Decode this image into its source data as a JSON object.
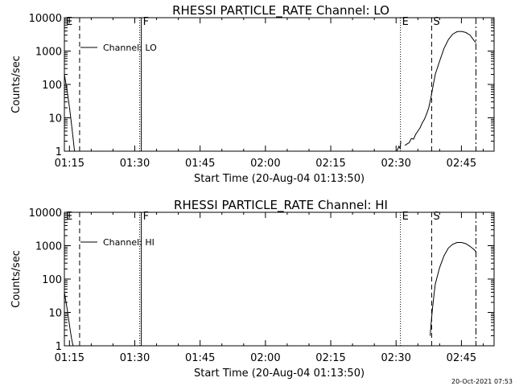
{
  "footer": {
    "timestamp": "20-Oct-2021 07:53"
  },
  "chart_data": [
    {
      "type": "line",
      "title": "RHESSI PARTICLE_RATE Channel: LO",
      "xlabel": "Start Time (20-Aug-04 01:13:50)",
      "ylabel": "Counts/sec",
      "yscale": "log",
      "ylim": [
        1,
        10000
      ],
      "xlim": [
        "01:13:50",
        "02:52:30"
      ],
      "xticks": [
        "01:15",
        "01:30",
        "01:45",
        "02:00",
        "02:15",
        "02:30",
        "02:45"
      ],
      "yticks": [
        "1",
        "10",
        "100",
        "1000",
        "10000"
      ],
      "legend": {
        "placement": "top-left",
        "entries": [
          "Channel: LO"
        ]
      },
      "grid": false,
      "markers": [
        {
          "label": "E",
          "time": "01:13:50",
          "style": "dotted"
        },
        {
          "label": "",
          "time": "01:17:20",
          "style": "dashed"
        },
        {
          "label": "F",
          "time": "01:31:30",
          "style": "solid"
        },
        {
          "label": "E",
          "time": "02:31:00",
          "style": "dotted"
        },
        {
          "label": "S",
          "time": "02:38:10",
          "style": "dashed"
        },
        {
          "label": "",
          "time": "02:48:20",
          "style": "dashdot"
        }
      ],
      "series": [
        {
          "name": "Channel: LO",
          "segments": [
            [
              [
                "01:13:50",
                200
              ],
              [
                "01:14:10",
                110
              ],
              [
                "01:14:30",
                60
              ],
              [
                "01:14:50",
                30
              ],
              [
                "01:15:10",
                14
              ],
              [
                "01:15:30",
                6
              ],
              [
                "01:15:50",
                2.5
              ],
              [
                "01:16:10",
                1
              ]
            ],
            [
              [
                "02:30:10",
                1
              ],
              [
                "02:30:40",
                1.4
              ],
              [
                "02:30:55",
                1.2
              ],
              [
                "02:31:05",
                2
              ]
            ],
            [
              [
                "02:32:00",
                1.5
              ],
              [
                "02:33:00",
                1.8
              ],
              [
                "02:33:30",
                2.4
              ],
              [
                "02:34:00",
                2.3
              ],
              [
                "02:34:30",
                3.2
              ],
              [
                "02:35:00",
                4
              ],
              [
                "02:35:30",
                5
              ],
              [
                "02:36:00",
                7
              ],
              [
                "02:36:30",
                9
              ],
              [
                "02:37:00",
                13
              ],
              [
                "02:37:30",
                20
              ],
              [
                "02:38:00",
                40
              ],
              [
                "02:38:30",
                90
              ],
              [
                "02:39:00",
                200
              ],
              [
                "02:40:00",
                500
              ],
              [
                "02:41:00",
                1200
              ],
              [
                "02:42:00",
                2200
              ],
              [
                "02:43:00",
                3200
              ],
              [
                "02:44:00",
                3800
              ],
              [
                "02:45:00",
                3900
              ],
              [
                "02:46:00",
                3600
              ],
              [
                "02:47:00",
                3000
              ],
              [
                "02:48:00",
                2000
              ],
              [
                "02:48:20",
                1800
              ]
            ]
          ]
        }
      ]
    },
    {
      "type": "line",
      "title": "RHESSI PARTICLE_RATE Channel: HI",
      "xlabel": "Start Time (20-Aug-04 01:13:50)",
      "ylabel": "Counts/sec",
      "yscale": "log",
      "ylim": [
        1,
        10000
      ],
      "xlim": [
        "01:13:50",
        "02:52:30"
      ],
      "xticks": [
        "01:15",
        "01:30",
        "01:45",
        "02:00",
        "02:15",
        "02:30",
        "02:45"
      ],
      "yticks": [
        "1",
        "10",
        "100",
        "1000",
        "10000"
      ],
      "legend": {
        "placement": "top-left",
        "entries": [
          "Channel: HI"
        ]
      },
      "grid": false,
      "markers": [
        {
          "label": "E",
          "time": "01:13:50",
          "style": "dotted"
        },
        {
          "label": "",
          "time": "01:17:20",
          "style": "dashed"
        },
        {
          "label": "F",
          "time": "01:31:30",
          "style": "solid"
        },
        {
          "label": "E",
          "time": "02:31:00",
          "style": "dotted"
        },
        {
          "label": "S",
          "time": "02:38:10",
          "style": "dashed"
        },
        {
          "label": "",
          "time": "02:48:20",
          "style": "dashdot"
        }
      ],
      "series": [
        {
          "name": "Channel: HI",
          "segments": [
            [
              [
                "01:13:50",
                40
              ],
              [
                "01:14:10",
                22
              ],
              [
                "01:14:30",
                12
              ],
              [
                "01:14:50",
                6
              ],
              [
                "01:15:10",
                3
              ],
              [
                "01:15:30",
                1.6
              ],
              [
                "01:15:50",
                1
              ]
            ],
            [
              [
                "02:37:50",
                2
              ],
              [
                "02:38:00",
                4
              ],
              [
                "02:38:20",
                12
              ],
              [
                "02:38:40",
                30
              ],
              [
                "02:39:00",
                70
              ],
              [
                "02:40:00",
                220
              ],
              [
                "02:41:00",
                500
              ],
              [
                "02:42:00",
                850
              ],
              [
                "02:43:00",
                1100
              ],
              [
                "02:44:00",
                1250
              ],
              [
                "02:45:00",
                1250
              ],
              [
                "02:46:00",
                1150
              ],
              [
                "02:47:00",
                950
              ],
              [
                "02:48:00",
                750
              ],
              [
                "02:48:20",
                650
              ]
            ]
          ]
        }
      ]
    }
  ]
}
